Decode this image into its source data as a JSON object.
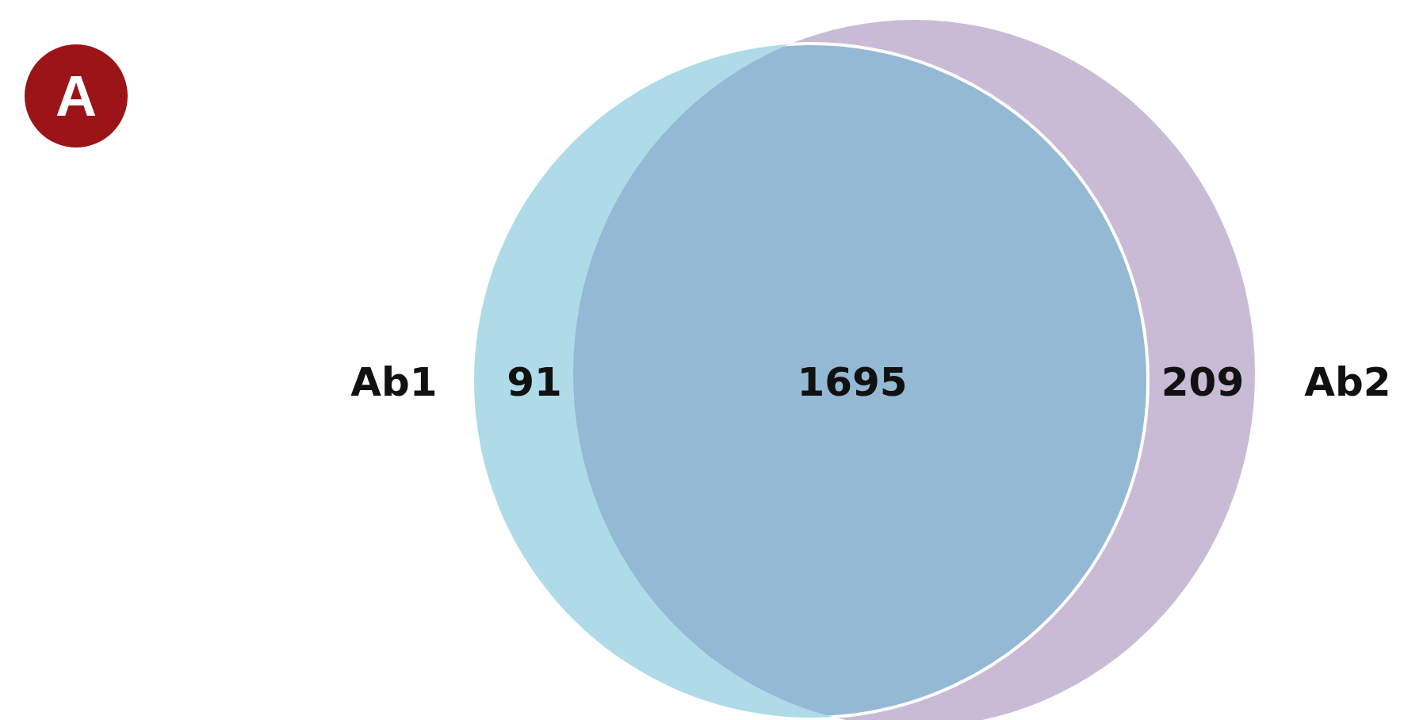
{
  "chart_data": {
    "type": "other",
    "categories": [
      "Ab1",
      null,
      "Ab2"
    ],
    "values": [
      91,
      1695,
      209
    ],
    "colors": [
      "#afdbe8",
      "#93b9d4",
      "#c9bbd6"
    ],
    "data_labels": true,
    "annotations": [
      "A"
    ]
  }
}
